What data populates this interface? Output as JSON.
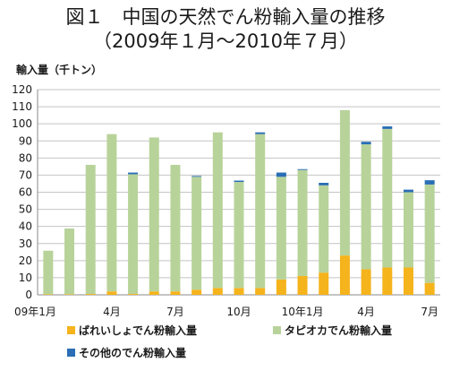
{
  "title": {
    "line1": "図１　中国の天然でん粉輸入量の推移",
    "line2": "（2009年１月～2010年７月）"
  },
  "chart_data": {
    "type": "bar",
    "stacked": true,
    "ylabel": "輸入量（千トン）",
    "ylim": [
      0,
      120
    ],
    "ytick_step": 10,
    "grid": true,
    "legend_position": "bottom",
    "categories": [
      "2009-01",
      "2009-02",
      "2009-03",
      "2009-04",
      "2009-05",
      "2009-06",
      "2009-07",
      "2009-08",
      "2009-09",
      "2009-10",
      "2009-11",
      "2009-12",
      "2010-01",
      "2010-02",
      "2010-03",
      "2010-04",
      "2010-05",
      "2010-06",
      "2010-07"
    ],
    "x_tick_labels": [
      {
        "index": 0,
        "label": "09年1月"
      },
      {
        "index": 3,
        "label": "4月"
      },
      {
        "index": 6,
        "label": "7月"
      },
      {
        "index": 9,
        "label": "10月"
      },
      {
        "index": 12,
        "label": "10年1月"
      },
      {
        "index": 15,
        "label": "4月"
      },
      {
        "index": 18,
        "label": "7月"
      }
    ],
    "series": [
      {
        "name": "ばれいしょでん粉輸入量",
        "color": "#f5b31c",
        "values": [
          0.3,
          0.3,
          0.5,
          2,
          0.5,
          2,
          2,
          3,
          4,
          4,
          4,
          9,
          11,
          13,
          23,
          15,
          16,
          16,
          7
        ]
      },
      {
        "name": "タピオカでん粉輸入量",
        "color": "#b8d39a",
        "values": [
          25.5,
          38.5,
          75.5,
          92,
          70,
          90,
          74,
          66,
          91,
          62,
          90,
          60,
          62,
          51,
          85,
          73,
          81,
          44,
          57.5
        ]
      },
      {
        "name": "その他のでん粉輸入量",
        "color": "#2a6eb5",
        "values": [
          0,
          0,
          0,
          0,
          1,
          0,
          0,
          0.5,
          0,
          0.8,
          1,
          2.5,
          0.5,
          1.5,
          0,
          1.5,
          1.5,
          1.5,
          2.5
        ]
      }
    ]
  }
}
